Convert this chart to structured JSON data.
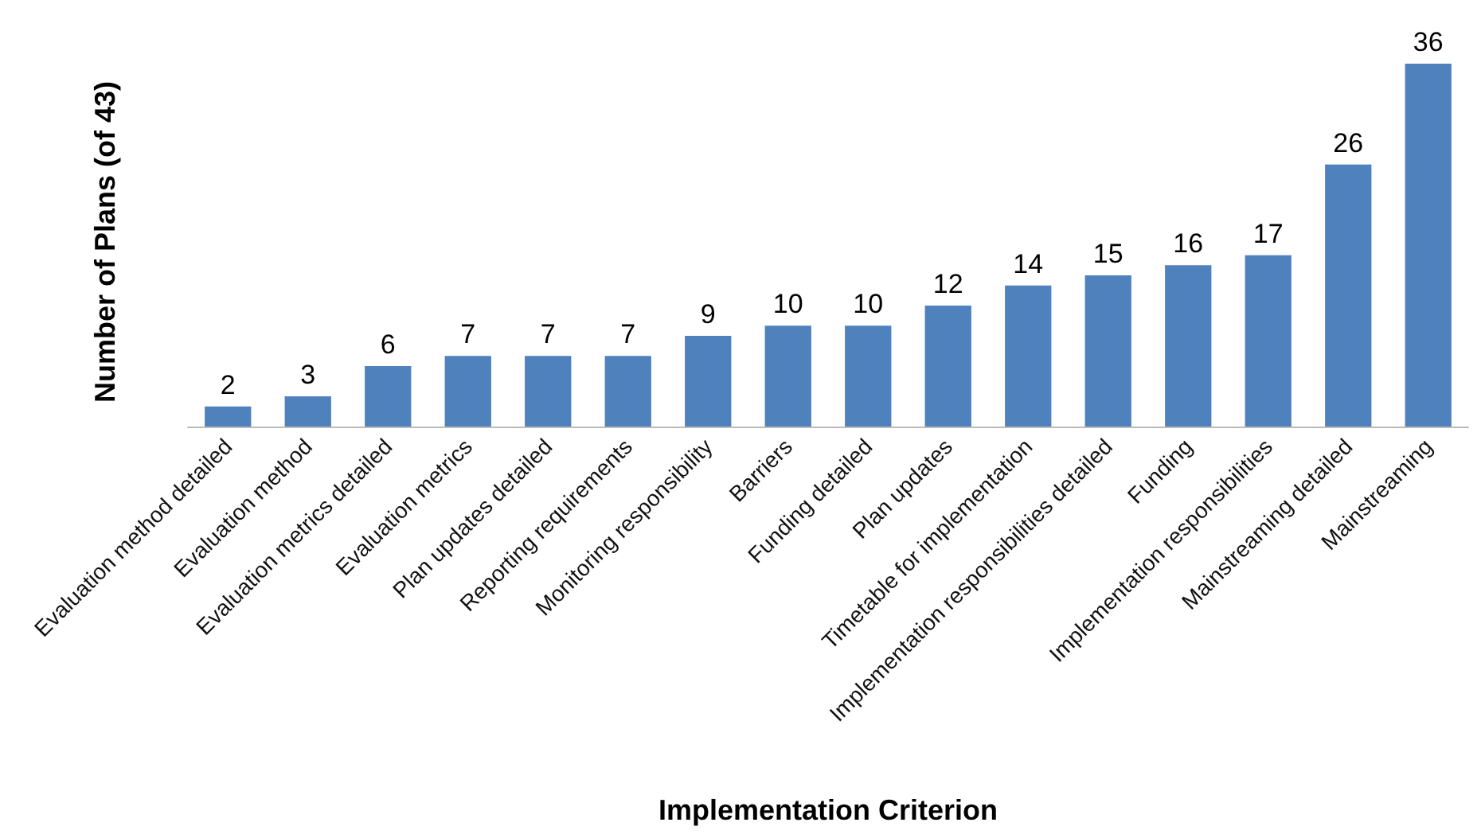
{
  "chart_data": {
    "type": "bar",
    "xlabel": "Implementation Criterion",
    "ylabel": "Number of Plans (of 43)",
    "categories": [
      "Evaluation method detailed",
      "Evaluation method",
      "Evaluation metrics detailed",
      "Evaluation metrics",
      "Plan updates detailed",
      "Reporting requirements",
      "Monitoring responsibility",
      "Barriers",
      "Funding detailed",
      "Plan updates",
      "Timetable for implementation",
      "Implementation responsibilities detailed",
      "Funding",
      "Implementation responsibilities",
      "Mainstreaming detailed",
      "Mainstreaming"
    ],
    "values": [
      2,
      3,
      6,
      7,
      7,
      7,
      9,
      10,
      10,
      12,
      14,
      15,
      16,
      17,
      26,
      36
    ],
    "color": "#4f81bd",
    "data_labels": true,
    "tick_labels": "x"
  }
}
